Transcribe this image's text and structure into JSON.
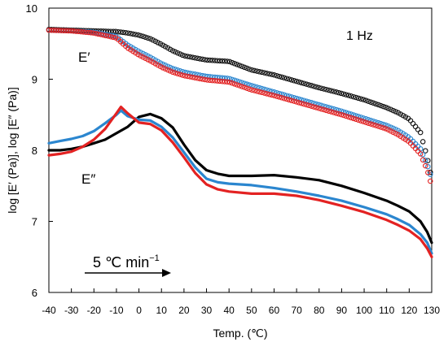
{
  "chart_data": {
    "type": "line",
    "title": "",
    "xlabel": "Temp. (℃)",
    "ylabel": "log [E′ (Pa)], log [E″ (Pa)]",
    "xlim": [
      -40,
      130
    ],
    "ylim": [
      6,
      10
    ],
    "x_ticks": [
      -40,
      -30,
      -20,
      -10,
      0,
      10,
      20,
      30,
      40,
      50,
      60,
      70,
      80,
      90,
      100,
      110,
      120,
      130
    ],
    "y_ticks": [
      6,
      7,
      8,
      9,
      10
    ],
    "grid": false,
    "annotations": {
      "frequency": "1 Hz",
      "storage_label": "E′",
      "loss_label": "E″",
      "rate_label": "5 ℃ min",
      "rate_exponent": "−1"
    },
    "series": [
      {
        "color": "#111111",
        "marker": "open-circle",
        "x": [
          -40,
          -30,
          -20,
          -10,
          -5,
          0,
          5,
          10,
          15,
          20,
          30,
          40,
          50,
          60,
          70,
          80,
          90,
          100,
          110,
          115,
          120,
          125,
          128,
          130
        ],
        "values": [
          9.7,
          9.69,
          9.68,
          9.67,
          9.65,
          9.62,
          9.57,
          9.49,
          9.4,
          9.33,
          9.27,
          9.25,
          9.13,
          9.06,
          8.97,
          8.88,
          8.8,
          8.71,
          8.6,
          8.53,
          8.44,
          8.25,
          7.9,
          7.6
        ]
      },
      {
        "color": "#2b86cf",
        "marker": "open-circle",
        "x": [
          -40,
          -30,
          -20,
          -10,
          -5,
          0,
          5,
          10,
          15,
          20,
          30,
          40,
          50,
          60,
          70,
          80,
          90,
          100,
          110,
          115,
          120,
          125,
          128,
          130
        ],
        "values": [
          9.69,
          9.68,
          9.66,
          9.6,
          9.48,
          9.39,
          9.31,
          9.22,
          9.15,
          9.1,
          9.04,
          9.01,
          8.91,
          8.82,
          8.73,
          8.64,
          8.55,
          8.45,
          8.35,
          8.28,
          8.18,
          8.02,
          7.8,
          7.6
        ]
      },
      {
        "color": "#e32222",
        "marker": "open-circle",
        "x": [
          -40,
          -30,
          -20,
          -10,
          -5,
          0,
          5,
          10,
          15,
          20,
          30,
          40,
          50,
          60,
          70,
          80,
          90,
          100,
          110,
          115,
          120,
          125,
          128,
          130
        ],
        "values": [
          9.69,
          9.68,
          9.65,
          9.58,
          9.44,
          9.34,
          9.26,
          9.17,
          9.1,
          9.05,
          8.99,
          8.96,
          8.85,
          8.77,
          8.68,
          8.59,
          8.5,
          8.4,
          8.3,
          8.22,
          8.12,
          7.95,
          7.72,
          7.5
        ]
      },
      {
        "color": "#000000",
        "marker": "line",
        "x": [
          -40,
          -35,
          -30,
          -25,
          -20,
          -15,
          -10,
          -5,
          0,
          5,
          10,
          15,
          20,
          25,
          30,
          35,
          40,
          50,
          60,
          70,
          80,
          90,
          100,
          110,
          115,
          120,
          125,
          128,
          130
        ],
        "values": [
          8.0,
          8.0,
          8.02,
          8.05,
          8.1,
          8.15,
          8.24,
          8.33,
          8.47,
          8.51,
          8.45,
          8.32,
          8.08,
          7.86,
          7.72,
          7.67,
          7.64,
          7.64,
          7.65,
          7.62,
          7.58,
          7.5,
          7.4,
          7.29,
          7.22,
          7.14,
          7.0,
          6.85,
          6.7
        ]
      },
      {
        "color": "#2b86cf",
        "marker": "line",
        "x": [
          -40,
          -35,
          -30,
          -25,
          -20,
          -15,
          -10,
          -8,
          -5,
          0,
          5,
          10,
          15,
          20,
          25,
          30,
          35,
          40,
          50,
          60,
          70,
          80,
          90,
          100,
          110,
          115,
          120,
          125,
          128,
          130
        ],
        "values": [
          8.1,
          8.13,
          8.16,
          8.2,
          8.27,
          8.38,
          8.5,
          8.56,
          8.48,
          8.43,
          8.42,
          8.33,
          8.18,
          7.97,
          7.76,
          7.6,
          7.55,
          7.53,
          7.51,
          7.47,
          7.42,
          7.36,
          7.29,
          7.2,
          7.1,
          7.03,
          6.95,
          6.82,
          6.7,
          6.55
        ]
      },
      {
        "color": "#e32222",
        "marker": "line",
        "x": [
          -40,
          -35,
          -30,
          -25,
          -20,
          -15,
          -10,
          -8,
          -5,
          0,
          5,
          10,
          15,
          20,
          25,
          30,
          35,
          40,
          50,
          60,
          70,
          80,
          90,
          100,
          110,
          115,
          120,
          125,
          128,
          130
        ],
        "values": [
          7.93,
          7.95,
          7.98,
          8.05,
          8.15,
          8.3,
          8.52,
          8.61,
          8.52,
          8.39,
          8.37,
          8.28,
          8.11,
          7.9,
          7.68,
          7.52,
          7.45,
          7.42,
          7.39,
          7.39,
          7.36,
          7.3,
          7.22,
          7.13,
          7.02,
          6.95,
          6.87,
          6.75,
          6.62,
          6.5
        ]
      }
    ]
  }
}
